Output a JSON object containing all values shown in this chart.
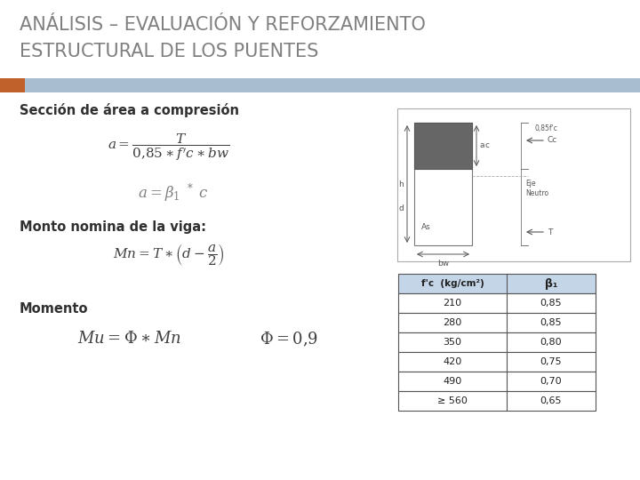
{
  "title_line1": "ANÁLISIS – EVALUACIÓN Y REFORZAMIENTO",
  "title_line2": "ESTRUCTURAL DE LOS PUENTES",
  "title_fontsize": 15,
  "title_color": "#808080",
  "header_bar_color": "#A8BDD0",
  "header_orange_color": "#C0602A",
  "bg_color": "#FFFFFF",
  "section_title": "Sección de área a compresión",
  "section_title_fontsize": 10.5,
  "monto_title": "Monto nomina de la viga:",
  "momento_title": "Momento",
  "table_header_col1": "f'c  (kg/cm²)",
  "table_header_col2": "β₁",
  "table_data": [
    [
      "210",
      "0,85"
    ],
    [
      "280",
      "0,85"
    ],
    [
      "350",
      "0,80"
    ],
    [
      "420",
      "0,75"
    ],
    [
      "490",
      "0,70"
    ],
    [
      "≥ 560",
      "0,65"
    ]
  ],
  "table_header_bg": "#C5D5E8",
  "table_bg": "#FFFFFF",
  "table_border_color": "#555555",
  "diagram_box_color": "#FFFFFF",
  "diagram_box_border": "#AAAAAA",
  "diagram_rect_color": "#666666",
  "diagram_line_color": "#888888",
  "text_color": "#404040"
}
